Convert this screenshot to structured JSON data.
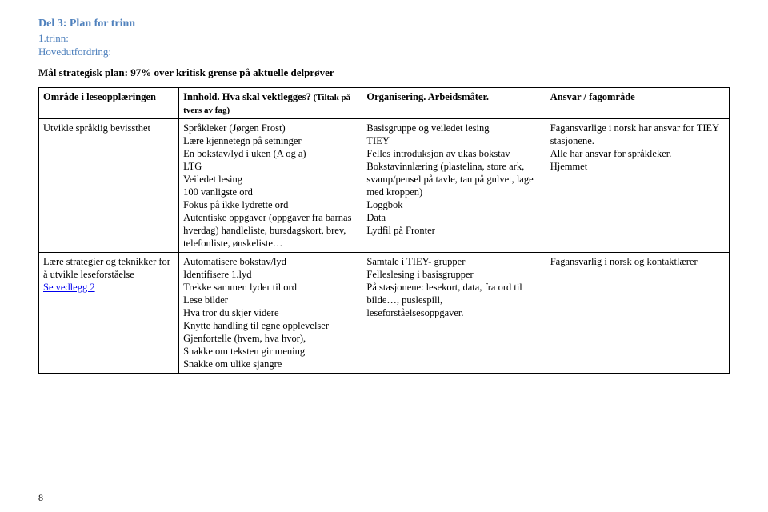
{
  "header": {
    "section_title": "Del 3: Plan for trinn",
    "grade": "1.trinn:",
    "challenge_label": "Hovedutfordring:",
    "goal": "Mål strategisk plan: 97% over kritisk grense på aktuelle delprøver"
  },
  "table": {
    "headers": {
      "col1": "Område i leseopplæringen",
      "col2_main": "Innhold. Hva skal vektlegges?",
      "col2_small": " (Tiltak på tvers av fag)",
      "col3_main": "Organisering. Arbeidsmåter.",
      "col4": "Ansvar / fagområde"
    },
    "row1": {
      "area": "Utvikle språklig bevissthet",
      "content": "Språkleker (Jørgen Frost)\nLære kjennetegn på setninger\nEn bokstav/lyd i uken (A og a)\nLTG\nVeiledet lesing\n100 vanligste ord\nFokus på ikke lydrette ord\nAutentiske oppgaver (oppgaver fra barnas hverdag) handleliste, bursdagskort, brev, telefonliste, ønskeliste…",
      "organisation": "Basisgruppe og veiledet lesing\nTIEY\nFelles introduksjon av ukas bokstav\nBokstavinnlæring (plastelina, store ark, svamp/pensel på tavle, tau på gulvet, lage med kroppen)\nLoggbok\nData\nLydfil på Fronter",
      "responsible": "Fagansvarlige i norsk har ansvar for TIEY stasjonene.\nAlle har ansvar for språkleker.\nHjemmet"
    },
    "row2": {
      "area_line1": "Lære strategier og teknikker for å utvikle leseforståelse",
      "area_link": "Se vedlegg 2",
      "content": "Automatisere bokstav/lyd\nIdentifisere 1.lyd\nTrekke sammen lyder til ord\nLese bilder\nHva tror du skjer videre\nKnytte handling til egne opplevelser\nGjenfortelle (hvem, hva hvor),\nSnakke om teksten gir mening\nSnakke om ulike sjangre",
      "organisation": "Samtale i TIEY- grupper\nFelleslesing i basisgrupper\nPå stasjonene: lesekort, data, fra ord til bilde…, puslespill, leseforståelsesoppgaver.",
      "responsible": "Fagansvarlig i norsk og kontaktlærer"
    }
  },
  "page_number": "8"
}
